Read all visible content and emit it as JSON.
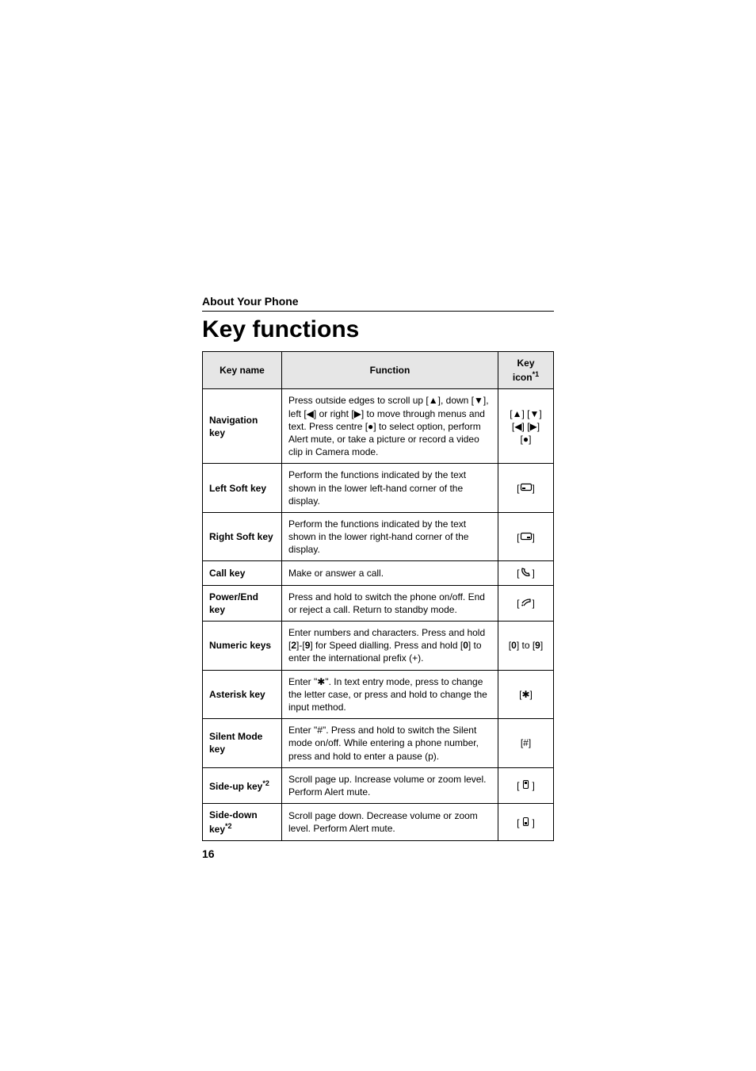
{
  "header": {
    "section_label": "About Your Phone",
    "title": "Key functions",
    "page_number": "16"
  },
  "table": {
    "columns": {
      "name": "Key name",
      "function": "Function",
      "icon_prefix": "Key icon",
      "icon_sup": "*1"
    },
    "rows": [
      {
        "name": "Navigation key",
        "function_html": "Press outside edges to scroll up [▲], down [▼], left [◀] or right [▶] to move through menus and text. Press centre [●] to select option, perform Alert mute, or take a picture or record a video clip in Camera mode.",
        "icon_html": "[▲] [▼]<br>[◀] [▶]<br>[●]"
      },
      {
        "name": "Left Soft key",
        "function_html": "Perform the functions indicated by the text shown in the lower left-hand corner of the display.",
        "icon_svg": "left-soft-icon"
      },
      {
        "name": "Right Soft key",
        "function_html": "Perform the functions indicated by the text shown in the lower right-hand corner of the display.",
        "icon_svg": "right-soft-icon"
      },
      {
        "name": "Call key",
        "function_html": "Make or answer a call.",
        "icon_svg": "call-icon"
      },
      {
        "name": "Power/End key",
        "function_html": "Press and hold to switch the phone on/off. End or reject a call. Return to standby mode.",
        "icon_svg": "end-icon"
      },
      {
        "name": "Numeric keys",
        "function_html": "Enter numbers and characters. Press and hold [<b>2</b>]-[<b>9</b>] for Speed dialling. Press and hold [<b>0</b>] to enter the international prefix (+).",
        "icon_html": "[<b>0</b>] to [<b>9</b>]"
      },
      {
        "name": "Asterisk key",
        "function_html": "Enter \"✱\". In text entry mode, press to change the letter case, or press and hold to change the input method.",
        "icon_html": "[✱]"
      },
      {
        "name": "Silent Mode key",
        "function_html": "Enter \"#\". Press and hold to switch the Silent mode on/off. While entering a phone number, press and hold to enter a pause (p).",
        "icon_html": "[#]"
      },
      {
        "name_html": "Side-up key<sup>*2</sup>",
        "function_html": "Scroll page up. Increase volume or zoom level. Perform Alert mute.",
        "icon_svg": "side-up-icon"
      },
      {
        "name_html": "Side-down key<sup>*2</sup>",
        "function_html": "Scroll page down. Decrease volume or zoom level. Perform Alert mute.",
        "icon_svg": "side-down-icon"
      }
    ]
  },
  "style": {
    "header_bg": "#e6e6e6",
    "border_color": "#000000",
    "body_fontsize": 12,
    "title_fontsize": 30
  }
}
